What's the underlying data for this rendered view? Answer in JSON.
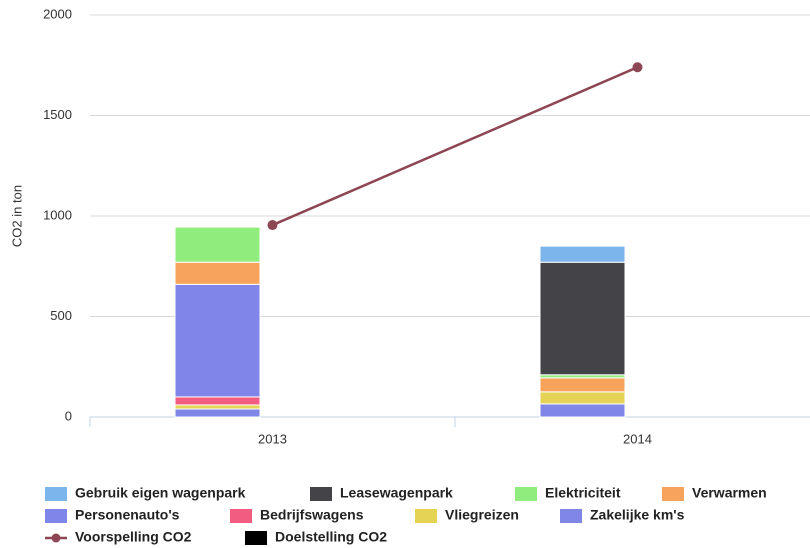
{
  "chart_data": {
    "type": "bar",
    "y_label": "CO2 in ton",
    "categories": [
      "2013",
      "2014"
    ],
    "ylim": [
      0,
      2000
    ],
    "yticks": [
      0,
      500,
      1000,
      1500,
      2000
    ],
    "grid": true,
    "series": [
      {
        "name": "Gebruik eigen wagenpark",
        "color": "#7cb5ec",
        "values": [
          0,
          80
        ]
      },
      {
        "name": "Leasewagenpark",
        "color": "#434348",
        "values": [
          0,
          560
        ]
      },
      {
        "name": "Elektriciteit",
        "color": "#90ed7d",
        "values": [
          175,
          15
        ]
      },
      {
        "name": "Verwarmen",
        "color": "#f7a35c",
        "values": [
          110,
          70
        ]
      },
      {
        "name": "Personenauto's",
        "color": "#8085e9",
        "values": [
          560,
          0
        ]
      },
      {
        "name": "Bedrijfswagens",
        "color": "#f15c80",
        "values": [
          40,
          0
        ]
      },
      {
        "name": "Vliegreizen",
        "color": "#e4d354",
        "values": [
          20,
          60
        ]
      },
      {
        "name": "Zakelijke km's",
        "color": "#7f86e6",
        "values": [
          40,
          65
        ]
      },
      {
        "name": "Voorspelling CO2",
        "type": "line",
        "color": "#8d4653",
        "values": [
          955,
          1740
        ]
      },
      {
        "name": "Doelstelling CO2",
        "color": "#000000",
        "values": [
          null,
          null
        ]
      }
    ]
  }
}
